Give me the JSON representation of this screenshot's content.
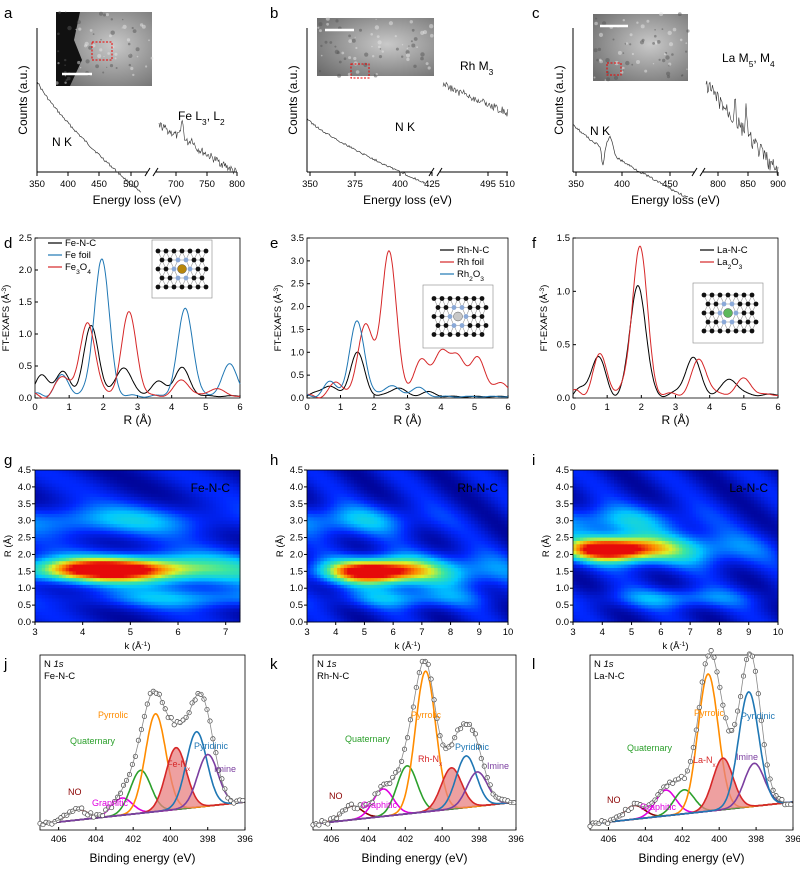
{
  "panel_letters": [
    "a",
    "b",
    "c",
    "d",
    "e",
    "f",
    "g",
    "h",
    "i",
    "j",
    "k",
    "l"
  ],
  "colors": {
    "black": "#000000",
    "blue": "#1f77b4",
    "red": "#d62728",
    "orange": "#ff8c00",
    "green": "#2ca02c",
    "magenta": "#e000e0",
    "purple": "#7b3fa0",
    "darkred": "#8b0000",
    "fill_red": "#e88080"
  },
  "chart_data": [
    {
      "id": "a",
      "type": "line",
      "xlabel": "Energy loss (eV)",
      "ylabel": "Counts (a.u.)",
      "xticks": [
        "350",
        "400",
        "450",
        "500",
        "700",
        "750",
        "800"
      ],
      "xlim_left": [
        350,
        525
      ],
      "xlim_right": [
        690,
        800
      ],
      "labels": {
        "edge1": "N K",
        "edge2": "Fe L",
        "edge2_sub1": "3",
        "sep": ", ",
        "edge2_b": "L",
        "edge2_sub2": "2"
      },
      "inset": "HAADF image with scale bar"
    },
    {
      "id": "b",
      "type": "line",
      "xlabel": "Energy loss (eV)",
      "ylabel": "Counts (a.u.)",
      "xticks": [
        "350",
        "375",
        "400",
        "425",
        "495",
        "510"
      ],
      "xlim_left": [
        350,
        432
      ],
      "xlim_right": [
        483,
        510
      ],
      "labels": {
        "edge1": "N K",
        "edge2": "Rh M",
        "edge2_sub1": "3"
      },
      "inset": "HAADF image with scale bar"
    },
    {
      "id": "c",
      "type": "line",
      "xlabel": "Energy loss (eV)",
      "ylabel": "Counts (a.u.)",
      "xticks": [
        "350",
        "400",
        "450",
        "800",
        "850",
        "900"
      ],
      "xlim_left": [
        350,
        478
      ],
      "xlim_right": [
        770,
        930
      ],
      "labels": {
        "edge1": "N K",
        "edge2": "La M",
        "edge2_sub1": "5",
        "sep": ", ",
        "edge2_b": "M",
        "edge2_sub2": "4"
      },
      "inset": "HAADF image with scale bar"
    },
    {
      "id": "d",
      "type": "line",
      "xlabel": "R (Å)",
      "ylabel": "FT-EXAFS (Å",
      "ylabel_sup": "-3",
      "ylabel_end": ")",
      "xlim": [
        0,
        6
      ],
      "ylim": [
        0,
        2.5
      ],
      "xticks": [
        "0",
        "1",
        "2",
        "3",
        "4",
        "5",
        "6"
      ],
      "yticks": [
        "0.0",
        "0.5",
        "1.0",
        "1.5",
        "2.0",
        "2.5"
      ],
      "series": [
        {
          "name": "Fe-N-C",
          "color": "#000000",
          "peaks": [
            [
              0.2,
              0.28
            ],
            [
              0.8,
              0.35
            ],
            [
              1.65,
              1.08
            ],
            [
              2.6,
              0.46
            ],
            [
              3.6,
              0.22
            ],
            [
              4.3,
              0.44
            ]
          ]
        },
        {
          "name": "Fe foil",
          "color": "#1f77b4",
          "peaks": [
            [
              0.8,
              0.3
            ],
            [
              1.95,
              2.15
            ],
            [
              4.4,
              1.37
            ],
            [
              5.7,
              0.5
            ]
          ]
        },
        {
          "name": "Fe",
          "sub": "3",
          "suffix": "O",
          "sub2": "4",
          "color": "#d62728",
          "peaks": [
            [
              0.85,
              0.3
            ],
            [
              1.55,
              1.15
            ],
            [
              2.75,
              1.3
            ],
            [
              4.3,
              0.25
            ],
            [
              5.3,
              0.12
            ]
          ]
        }
      ],
      "inset": "Fe-N4 structure model"
    },
    {
      "id": "e",
      "type": "line",
      "xlabel": "R (Å)",
      "ylabel": "FT-EXAFS (Å",
      "ylabel_sup": "-3",
      "ylabel_end": ")",
      "xlim": [
        0,
        6
      ],
      "ylim": [
        0,
        3.5
      ],
      "xticks": [
        "0",
        "1",
        "2",
        "3",
        "4",
        "5",
        "6"
      ],
      "yticks": [
        "0.0",
        "0.5",
        "1.0",
        "1.5",
        "2.0",
        "2.5",
        "3.0",
        "3.5"
      ],
      "series": [
        {
          "name": "Rh-N-C",
          "color": "#000000",
          "peaks": [
            [
              0.6,
              0.25
            ],
            [
              1.5,
              0.95
            ],
            [
              2.7,
              0.2
            ],
            [
              3.6,
              0.1
            ]
          ]
        },
        {
          "name": "Rh foil",
          "color": "#d62728",
          "peaks": [
            [
              0.9,
              0.3
            ],
            [
              1.75,
              1.6
            ],
            [
              2.45,
              3.2
            ],
            [
              3.4,
              0.8
            ],
            [
              4.0,
              0.95
            ],
            [
              4.5,
              0.85
            ],
            [
              5.1,
              0.85
            ],
            [
              5.8,
              0.3
            ]
          ]
        },
        {
          "name": "Rh",
          "sub": "2",
          "suffix": "O",
          "sub2": "3",
          "color": "#1f77b4",
          "peaks": [
            [
              0.7,
              0.3
            ],
            [
              1.5,
              1.65
            ],
            [
              2.5,
              0.25
            ],
            [
              3.3,
              0.2
            ]
          ]
        }
      ],
      "inset": "Rh-N4 structure model"
    },
    {
      "id": "f",
      "type": "line",
      "xlabel": "R (Å)",
      "ylabel": "FT-EXAFS (Å",
      "ylabel_sup": "-3",
      "ylabel_end": ")",
      "xlim": [
        0,
        6
      ],
      "ylim": [
        0,
        1.5
      ],
      "xticks": [
        "0",
        "1",
        "2",
        "3",
        "4",
        "5",
        "6"
      ],
      "yticks": [
        "0.0",
        "0.5",
        "1.0",
        "1.5"
      ],
      "series": [
        {
          "name": "La-N-C",
          "color": "#000000",
          "peaks": [
            [
              0.7,
              0.35
            ],
            [
              1.9,
              1.05
            ],
            [
              3.5,
              0.35
            ],
            [
              4.6,
              0.15
            ]
          ]
        },
        {
          "name": "La",
          "sub": "2",
          "suffix": "O",
          "sub2": "3",
          "color": "#d62728",
          "peaks": [
            [
              0.8,
              0.35
            ],
            [
              1.95,
              1.4
            ],
            [
              3.7,
              0.33
            ],
            [
              5.0,
              0.15
            ]
          ]
        }
      ],
      "inset": "La-N4 structure model"
    },
    {
      "id": "g",
      "type": "heatmap",
      "title": "Fe-N-C",
      "xlabel": "k (Å",
      "xlabel_sup": "-1",
      "xlabel_end": ")",
      "ylabel": "R (Å)",
      "xlim": [
        3,
        7.3
      ],
      "ylim": [
        0,
        4.5
      ],
      "xticks": [
        "3",
        "4",
        "5",
        "6",
        "7"
      ],
      "yticks": [
        "0.0",
        "0.5",
        "1.0",
        "1.5",
        "2.0",
        "2.5",
        "3.0",
        "3.5",
        "4.0",
        "4.5"
      ],
      "peak": {
        "k": 4.5,
        "R": 1.55
      }
    },
    {
      "id": "h",
      "type": "heatmap",
      "title": "Rh-N-C",
      "xlabel": "k (Å",
      "xlabel_sup": "-1",
      "xlabel_end": ")",
      "ylabel": "R (Å)",
      "xlim": [
        3,
        10
      ],
      "ylim": [
        0,
        4.5
      ],
      "xticks": [
        "3",
        "4",
        "5",
        "6",
        "7",
        "8",
        "9",
        "10"
      ],
      "yticks": [
        "0.0",
        "0.5",
        "1.0",
        "1.5",
        "2.0",
        "2.5",
        "3.0",
        "3.5",
        "4.0",
        "4.5"
      ],
      "peak": {
        "k": 5.3,
        "R": 1.5
      }
    },
    {
      "id": "i",
      "type": "heatmap",
      "title": "La-N-C",
      "xlabel": "k (Å",
      "xlabel_sup": "-1",
      "xlabel_end": ")",
      "ylabel": "R (Å)",
      "xlim": [
        3,
        10
      ],
      "ylim": [
        0,
        4.5
      ],
      "xticks": [
        "3",
        "4",
        "5",
        "6",
        "7",
        "8",
        "9",
        "10"
      ],
      "yticks": [
        "0.0",
        "0.5",
        "1.0",
        "1.5",
        "2.0",
        "2.5",
        "3.0",
        "3.5",
        "4.0",
        "4.5"
      ],
      "peak": {
        "k": 4.3,
        "R": 2.15
      }
    },
    {
      "id": "j",
      "type": "line",
      "header1": "N ",
      "header1_it": "1s",
      "header2": "Fe-N-C",
      "xlabel": "Binding energy (eV)",
      "xlim": [
        407,
        396
      ],
      "xticks": [
        "406",
        "404",
        "402",
        "400",
        "398",
        "396"
      ],
      "components": [
        {
          "name": "NO",
          "color": "#8b0000",
          "center": 405.0,
          "height": 0.06
        },
        {
          "name": "Graphitic",
          "color": "#e000e0",
          "center": 402.6,
          "height": 0.1
        },
        {
          "name": "Quaternary",
          "color": "#2ca02c",
          "center": 401.6,
          "height": 0.25
        },
        {
          "name": "Pyrrolic",
          "color": "#ff8c00",
          "center": 400.8,
          "height": 0.57
        },
        {
          "name": "Fe-N",
          "sub": "x",
          "color": "#d62728",
          "center": 399.7,
          "height": 0.36
        },
        {
          "name": "Pyridinic",
          "color": "#1f77b4",
          "center": 398.6,
          "height": 0.44
        },
        {
          "name": "Imine",
          "color": "#7b3fa0",
          "center": 398.0,
          "height": 0.3
        }
      ]
    },
    {
      "id": "k",
      "type": "line",
      "header1": "N ",
      "header1_it": "1s",
      "header2": "Rh-N-C",
      "xlabel": "Binding energy (eV)",
      "xlim": [
        407,
        396
      ],
      "xticks": [
        "406",
        "404",
        "402",
        "400",
        "398",
        "396"
      ],
      "components": [
        {
          "name": "NO",
          "color": "#8b0000",
          "center": 404.9,
          "height": 0.08
        },
        {
          "name": "Graphitic",
          "color": "#e000e0",
          "center": 403.2,
          "height": 0.16
        },
        {
          "name": "Quaternary",
          "color": "#2ca02c",
          "center": 401.9,
          "height": 0.28
        },
        {
          "name": "Pyrrolic",
          "color": "#ff8c00",
          "center": 400.9,
          "height": 0.82
        },
        {
          "name": "Rh-N",
          "sub": "x",
          "color": "#d62728",
          "center": 399.5,
          "height": 0.24
        },
        {
          "name": "Pyridinic",
          "color": "#1f77b4",
          "center": 398.7,
          "height": 0.3
        },
        {
          "name": "Imine",
          "color": "#7b3fa0",
          "center": 398.1,
          "height": 0.2
        }
      ]
    },
    {
      "id": "l",
      "type": "line",
      "header1": "N ",
      "header1_it": "1s",
      "header2": "La-N-C",
      "xlabel": "Binding energy (eV)",
      "xlim": [
        407,
        396
      ],
      "xticks": [
        "406",
        "404",
        "402",
        "400",
        "398",
        "396"
      ],
      "components": [
        {
          "name": "NO",
          "color": "#8b0000",
          "center": 404.6,
          "height": 0.08
        },
        {
          "name": "Graphitic",
          "color": "#e000e0",
          "center": 402.9,
          "height": 0.15
        },
        {
          "name": "Quaternary",
          "color": "#2ca02c",
          "center": 401.9,
          "height": 0.14
        },
        {
          "name": "Pyrrolic",
          "color": "#ff8c00",
          "center": 400.6,
          "height": 0.8
        },
        {
          "name": "La-N",
          "sub": "x",
          "color": "#d62728",
          "center": 399.8,
          "height": 0.3
        },
        {
          "name": "Imine",
          "color": "#7b3fa0",
          "center": 398.1,
          "height": 0.25
        },
        {
          "name": "Pyridinic",
          "color": "#1f77b4",
          "center": 398.4,
          "height": 0.67
        }
      ]
    }
  ]
}
